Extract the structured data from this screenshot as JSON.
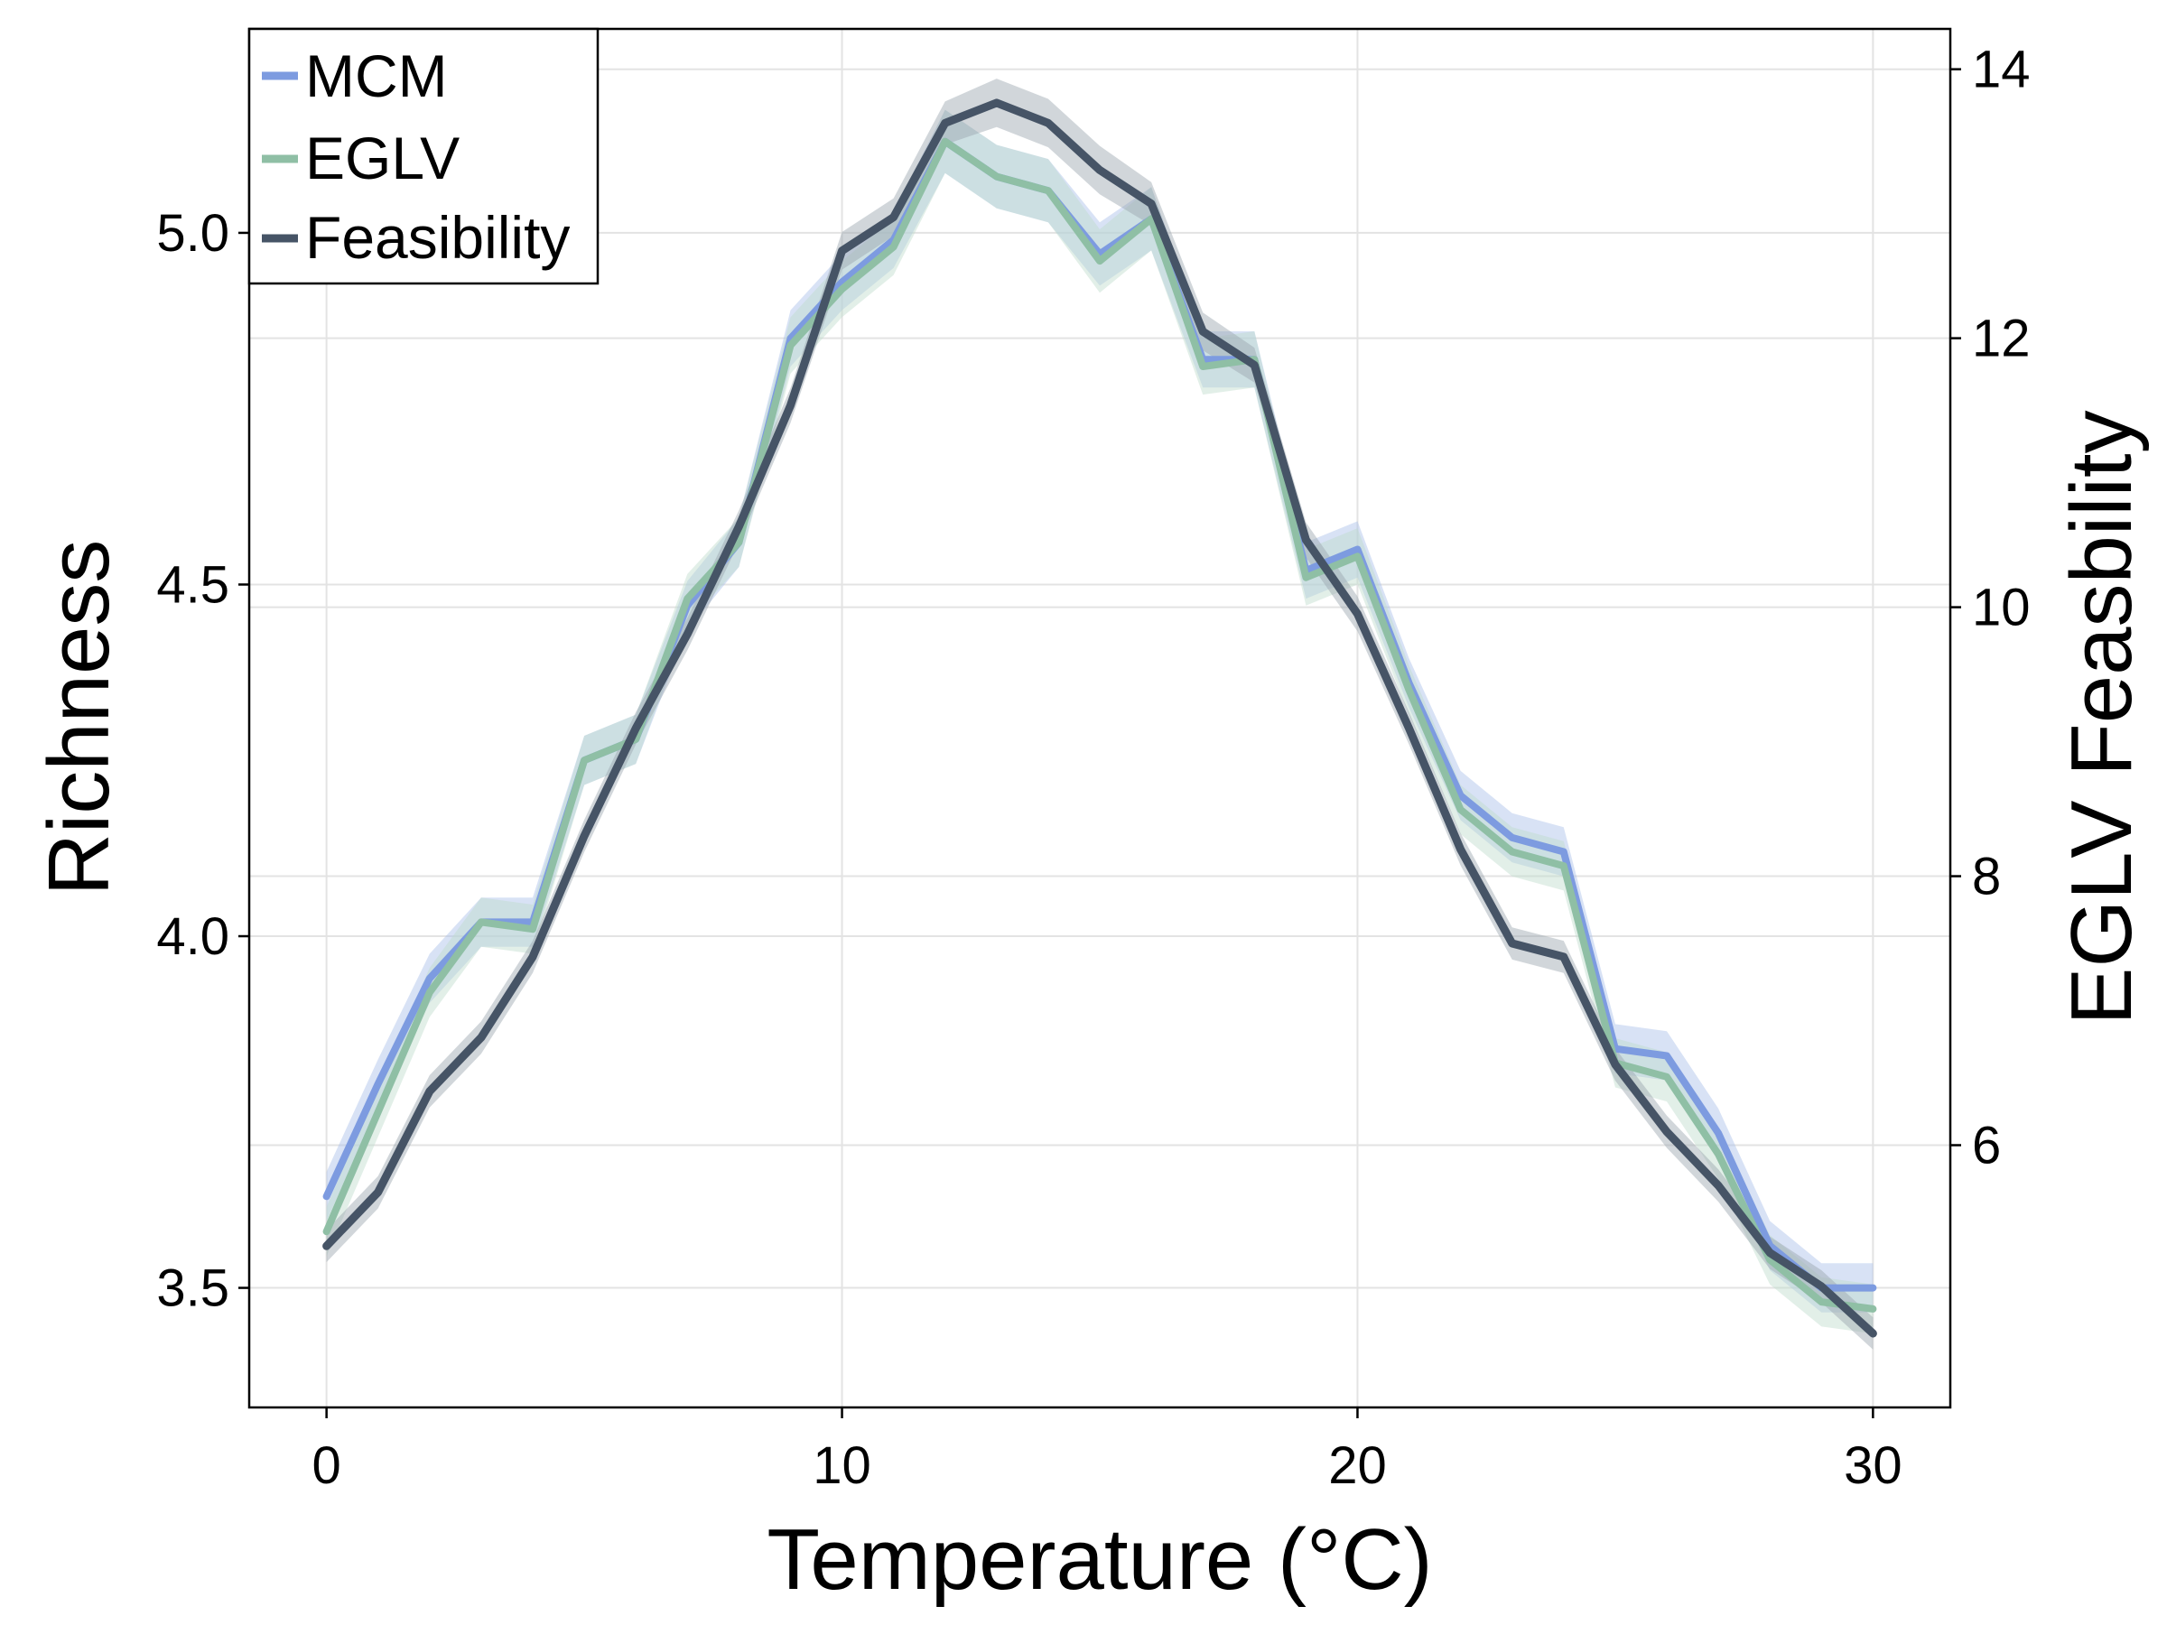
{
  "chart_data": {
    "type": "line",
    "xlabel": "Temperature (°C)",
    "ylabel": "Richness",
    "y2label": "EGLV Feasbility",
    "xlim": [
      -1.5,
      31.5
    ],
    "ylim": [
      3.33,
      5.29
    ],
    "y2lim": [
      4.05,
      14.3
    ],
    "xticks": [
      "0",
      "10",
      "20",
      "30"
    ],
    "xtick_values": [
      0,
      10,
      20,
      30
    ],
    "yticks": [
      "3.5",
      "4.0",
      "4.5",
      "5.0"
    ],
    "ytick_values": [
      3.5,
      4.0,
      4.5,
      5.0
    ],
    "y2ticks": [
      "6",
      "8",
      "10",
      "12",
      "14"
    ],
    "y2tick_values": [
      6,
      8,
      10,
      12,
      14
    ],
    "grid": true,
    "legend_position": "top-left",
    "x": [
      0,
      1,
      2,
      3,
      4,
      5,
      6,
      7,
      8,
      9,
      10,
      11,
      12,
      13,
      14,
      15,
      16,
      17,
      18,
      19,
      20,
      21,
      22,
      23,
      24,
      25,
      26,
      27,
      28,
      29,
      30
    ],
    "series": [
      {
        "name": "MCM",
        "axis": "left",
        "color": "#7d9be0",
        "band_color": "#a9bfe8",
        "values": [
          3.63,
          3.79,
          3.94,
          4.02,
          4.02,
          4.25,
          4.28,
          4.47,
          4.56,
          4.85,
          4.93,
          4.99,
          5.13,
          5.08,
          5.06,
          4.97,
          5.02,
          4.82,
          4.82,
          4.52,
          4.55,
          4.36,
          4.2,
          4.14,
          4.12,
          3.84,
          3.83,
          3.72,
          3.56,
          3.5,
          3.5
        ],
        "band": [
          0.035,
          0.035,
          0.035,
          0.035,
          0.035,
          0.035,
          0.035,
          0.035,
          0.035,
          0.04,
          0.04,
          0.04,
          0.045,
          0.045,
          0.045,
          0.045,
          0.045,
          0.04,
          0.04,
          0.04,
          0.04,
          0.035,
          0.035,
          0.035,
          0.035,
          0.035,
          0.035,
          0.035,
          0.035,
          0.035,
          0.035
        ]
      },
      {
        "name": "EGLV",
        "axis": "left",
        "color": "#8fbfa5",
        "band_color": "#bfdccb",
        "values": [
          3.58,
          3.75,
          3.92,
          4.02,
          4.01,
          4.25,
          4.28,
          4.48,
          4.56,
          4.84,
          4.92,
          4.98,
          5.13,
          5.08,
          5.06,
          4.96,
          5.02,
          4.81,
          4.82,
          4.51,
          4.54,
          4.35,
          4.18,
          4.12,
          4.1,
          3.82,
          3.8,
          3.69,
          3.54,
          3.48,
          3.47
        ],
        "band": [
          0.035,
          0.035,
          0.035,
          0.035,
          0.035,
          0.035,
          0.035,
          0.035,
          0.035,
          0.04,
          0.04,
          0.04,
          0.045,
          0.045,
          0.045,
          0.045,
          0.045,
          0.04,
          0.04,
          0.04,
          0.04,
          0.035,
          0.035,
          0.035,
          0.035,
          0.035,
          0.035,
          0.035,
          0.035,
          0.035,
          0.035
        ]
      },
      {
        "name": "Feasibility",
        "axis": "right",
        "color": "#465466",
        "band_color": "#9aa3ad",
        "values": [
          5.25,
          5.65,
          6.4,
          6.8,
          7.4,
          8.3,
          9.1,
          9.8,
          10.6,
          11.5,
          12.65,
          12.9,
          13.6,
          13.75,
          13.6,
          13.25,
          13.0,
          12.05,
          11.8,
          10.5,
          9.95,
          9.1,
          8.2,
          7.5,
          7.4,
          6.6,
          6.1,
          5.7,
          5.2,
          4.95,
          4.6
        ],
        "band": [
          0.12,
          0.12,
          0.12,
          0.12,
          0.12,
          0.12,
          0.12,
          0.12,
          0.12,
          0.13,
          0.14,
          0.14,
          0.16,
          0.18,
          0.18,
          0.18,
          0.16,
          0.14,
          0.13,
          0.13,
          0.13,
          0.12,
          0.12,
          0.12,
          0.12,
          0.12,
          0.12,
          0.12,
          0.12,
          0.12,
          0.12
        ]
      }
    ]
  }
}
